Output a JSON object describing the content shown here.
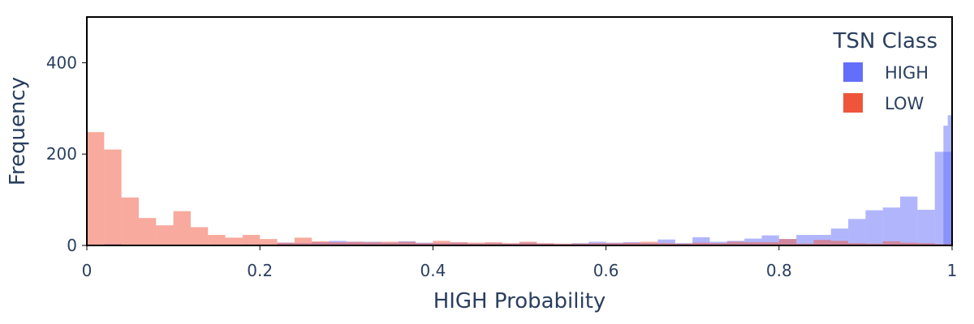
{
  "chart_data": {
    "type": "histogram",
    "title": "",
    "xlabel": "HIGH Probability",
    "ylabel": "Frequency",
    "xlim": [
      0,
      1
    ],
    "ylim": [
      0,
      500
    ],
    "x_ticks": [
      0,
      0.2,
      0.4,
      0.6,
      0.8,
      1
    ],
    "x_tick_labels": [
      "0",
      "0.2",
      "0.4",
      "0.6",
      "0.8",
      "1"
    ],
    "y_ticks": [
      0,
      200,
      400
    ],
    "y_tick_labels": [
      "0",
      "200",
      "400"
    ],
    "bin_width": 0.02,
    "barmode": "overlay",
    "legend": {
      "title": "TSN Class",
      "position": "top-right"
    },
    "series": [
      {
        "name": "HIGH",
        "color": "#636efa",
        "opacity": 0.5,
        "bins": [
          [
            0.0,
            0
          ],
          [
            0.02,
            3
          ],
          [
            0.04,
            1
          ],
          [
            0.06,
            1
          ],
          [
            0.08,
            0
          ],
          [
            0.1,
            1
          ],
          [
            0.12,
            1
          ],
          [
            0.14,
            0
          ],
          [
            0.16,
            1
          ],
          [
            0.18,
            2
          ],
          [
            0.2,
            2
          ],
          [
            0.22,
            6
          ],
          [
            0.24,
            5
          ],
          [
            0.26,
            7
          ],
          [
            0.28,
            10
          ],
          [
            0.3,
            8
          ],
          [
            0.32,
            8
          ],
          [
            0.34,
            6
          ],
          [
            0.36,
            9
          ],
          [
            0.38,
            6
          ],
          [
            0.4,
            5
          ],
          [
            0.42,
            6
          ],
          [
            0.44,
            4
          ],
          [
            0.46,
            5
          ],
          [
            0.48,
            4
          ],
          [
            0.5,
            6
          ],
          [
            0.52,
            4
          ],
          [
            0.54,
            3
          ],
          [
            0.56,
            5
          ],
          [
            0.58,
            8
          ],
          [
            0.6,
            6
          ],
          [
            0.62,
            7
          ],
          [
            0.64,
            5
          ],
          [
            0.66,
            13
          ],
          [
            0.68,
            5
          ],
          [
            0.7,
            18
          ],
          [
            0.72,
            8
          ],
          [
            0.74,
            10
          ],
          [
            0.76,
            15
          ],
          [
            0.78,
            22
          ],
          [
            0.8,
            14
          ],
          [
            0.82,
            23
          ],
          [
            0.84,
            23
          ],
          [
            0.86,
            37
          ],
          [
            0.88,
            58
          ],
          [
            0.9,
            77
          ],
          [
            0.92,
            83
          ],
          [
            0.94,
            107
          ],
          [
            0.96,
            78
          ],
          [
            0.98,
            205
          ]
        ],
        "fine_bins": [
          [
            0.99,
            262
          ],
          [
            0.995,
            285
          ]
        ]
      },
      {
        "name": "LOW",
        "color": "#ef553b",
        "opacity": 0.5,
        "bins": [
          [
            0.0,
            248
          ],
          [
            0.02,
            210
          ],
          [
            0.04,
            105
          ],
          [
            0.06,
            60
          ],
          [
            0.08,
            44
          ],
          [
            0.1,
            75
          ],
          [
            0.12,
            40
          ],
          [
            0.14,
            23
          ],
          [
            0.16,
            17
          ],
          [
            0.18,
            23
          ],
          [
            0.2,
            14
          ],
          [
            0.22,
            6
          ],
          [
            0.24,
            17
          ],
          [
            0.26,
            9
          ],
          [
            0.28,
            7
          ],
          [
            0.3,
            8
          ],
          [
            0.32,
            7
          ],
          [
            0.34,
            8
          ],
          [
            0.36,
            8
          ],
          [
            0.38,
            5
          ],
          [
            0.4,
            10
          ],
          [
            0.42,
            7
          ],
          [
            0.44,
            6
          ],
          [
            0.46,
            7
          ],
          [
            0.48,
            5
          ],
          [
            0.5,
            8
          ],
          [
            0.52,
            5
          ],
          [
            0.54,
            4
          ],
          [
            0.56,
            4
          ],
          [
            0.58,
            5
          ],
          [
            0.6,
            5
          ],
          [
            0.62,
            6
          ],
          [
            0.64,
            8
          ],
          [
            0.66,
            5
          ],
          [
            0.68,
            4
          ],
          [
            0.7,
            6
          ],
          [
            0.72,
            5
          ],
          [
            0.74,
            8
          ],
          [
            0.76,
            7
          ],
          [
            0.78,
            7
          ],
          [
            0.8,
            14
          ],
          [
            0.82,
            4
          ],
          [
            0.84,
            12
          ],
          [
            0.86,
            10
          ],
          [
            0.88,
            5
          ],
          [
            0.9,
            4
          ],
          [
            0.92,
            9
          ],
          [
            0.94,
            6
          ],
          [
            0.96,
            5
          ],
          [
            0.98,
            3
          ]
        ]
      }
    ]
  }
}
